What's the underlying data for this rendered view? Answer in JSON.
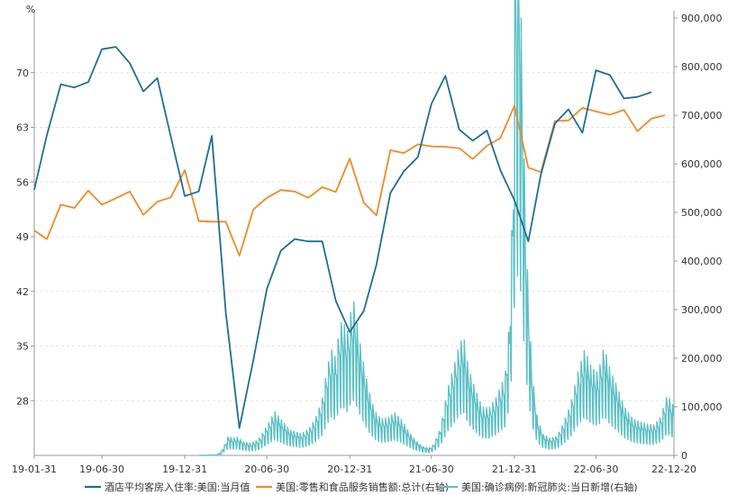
{
  "chart_data": {
    "type": "line",
    "ylabel_left": "%",
    "x_ticks": [
      "19-01-31",
      "19-06-30",
      "19-12-31",
      "20-06-30",
      "20-12-31",
      "21-06-30",
      "21-12-31",
      "22-06-30",
      "22-12-20"
    ],
    "x_range": [
      "2019-01-31",
      "2022-12-20"
    ],
    "y_left_ticks": [
      "28",
      "35",
      "42",
      "49",
      "56",
      "63",
      "70"
    ],
    "y_left_range": [
      21,
      77
    ],
    "y_right_ticks": [
      "0",
      "100,000",
      "200,000",
      "300,000",
      "400,000",
      "500,000",
      "600,000",
      "700,000",
      "800,000",
      "900,000"
    ],
    "y_right_range": [
      0,
      900000
    ],
    "grid": true,
    "legend_position": "bottom",
    "series": [
      {
        "name": "酒店平均客房入住率:美国:当月值",
        "axis": "left",
        "color": "#1f6e97",
        "x": [
          "2019-01-31",
          "2019-02-28",
          "2019-03-31",
          "2019-04-30",
          "2019-05-31",
          "2019-06-30",
          "2019-07-31",
          "2019-08-31",
          "2019-09-30",
          "2019-10-31",
          "2019-11-30",
          "2019-12-31",
          "2020-01-31",
          "2020-02-29",
          "2020-03-31",
          "2020-04-30",
          "2020-05-31",
          "2020-06-30",
          "2020-07-31",
          "2020-08-31",
          "2020-09-30",
          "2020-10-31",
          "2020-11-30",
          "2020-12-31",
          "2021-01-31",
          "2021-02-28",
          "2021-03-31",
          "2021-04-30",
          "2021-05-31",
          "2021-06-30",
          "2021-07-31",
          "2021-08-31",
          "2021-09-30",
          "2021-10-31",
          "2021-11-30",
          "2021-12-31",
          "2022-01-31",
          "2022-02-28",
          "2022-03-31",
          "2022-04-30",
          "2022-05-31",
          "2022-06-30",
          "2022-07-31",
          "2022-08-31",
          "2022-09-30",
          "2022-10-31"
        ],
        "values": [
          55.0,
          62.0,
          68.5,
          68.1,
          68.8,
          73.0,
          73.3,
          71.2,
          67.6,
          69.3,
          61.8,
          54.2,
          54.8,
          61.9,
          39.3,
          24.5,
          33.2,
          42.3,
          47.2,
          48.7,
          48.4,
          48.4,
          40.8,
          36.8,
          39.5,
          45.4,
          54.6,
          57.4,
          59.2,
          66.0,
          69.6,
          62.7,
          61.3,
          62.6,
          57.5,
          53.7,
          48.4,
          57.0,
          63.5,
          65.3,
          62.3,
          70.3,
          69.7,
          66.7,
          66.9,
          67.5
        ]
      },
      {
        "name": "美国:零售和食品服务销售额:总计(右轴)",
        "axis": "right",
        "color": "#f08a28",
        "x": [
          "2019-01-31",
          "2019-02-28",
          "2019-03-31",
          "2019-04-30",
          "2019-05-31",
          "2019-06-30",
          "2019-07-31",
          "2019-08-31",
          "2019-09-30",
          "2019-10-31",
          "2019-11-30",
          "2019-12-31",
          "2020-01-31",
          "2020-02-29",
          "2020-03-31",
          "2020-04-30",
          "2020-05-31",
          "2020-06-30",
          "2020-07-31",
          "2020-08-31",
          "2020-09-30",
          "2020-10-31",
          "2020-11-30",
          "2020-12-31",
          "2021-01-31",
          "2021-02-28",
          "2021-03-31",
          "2021-04-30",
          "2021-05-31",
          "2021-06-30",
          "2021-07-31",
          "2021-08-31",
          "2021-09-30",
          "2021-10-31",
          "2021-11-30",
          "2021-12-31",
          "2022-01-31",
          "2022-02-28",
          "2022-03-31",
          "2022-04-30",
          "2022-05-31",
          "2022-06-30",
          "2022-07-31",
          "2022-08-31",
          "2022-09-30",
          "2022-10-31",
          "2022-11-30"
        ],
        "values": [
          463000,
          445000,
          516000,
          509000,
          545000,
          516000,
          529000,
          543000,
          495000,
          522000,
          531000,
          587000,
          482000,
          481000,
          481000,
          411000,
          506000,
          530000,
          546000,
          543000,
          530000,
          552000,
          542000,
          611000,
          520000,
          494000,
          628000,
          622000,
          640000,
          636000,
          635000,
          632000,
          610000,
          637000,
          653000,
          719000,
          592000,
          583000,
          688000,
          689000,
          715000,
          708000,
          701000,
          711000,
          667000,
          693000,
          700000
        ]
      },
      {
        "name": "美国:确诊病例:新冠肺炎:当日新增(右轴)",
        "axis": "right",
        "color": "#5cc0c5",
        "points": [
          [
            "2020-02-01",
            0
          ],
          [
            "2020-03-10",
            1000
          ],
          [
            "2020-03-20",
            5000
          ],
          [
            "2020-03-31",
            22000
          ],
          [
            "2020-04-05",
            32000
          ],
          [
            "2020-04-15",
            28000
          ],
          [
            "2020-04-25",
            30000
          ],
          [
            "2020-05-10",
            22000
          ],
          [
            "2020-05-25",
            20000
          ],
          [
            "2020-06-10",
            25000
          ],
          [
            "2020-06-25",
            42000
          ],
          [
            "2020-07-10",
            62000
          ],
          [
            "2020-07-18",
            72000
          ],
          [
            "2020-07-25",
            65000
          ],
          [
            "2020-08-05",
            55000
          ],
          [
            "2020-08-20",
            42000
          ],
          [
            "2020-09-05",
            38000
          ],
          [
            "2020-09-15",
            36000
          ],
          [
            "2020-10-01",
            44000
          ],
          [
            "2020-10-15",
            60000
          ],
          [
            "2020-10-30",
            90000
          ],
          [
            "2020-11-10",
            140000
          ],
          [
            "2020-11-20",
            175000
          ],
          [
            "2020-11-30",
            160000
          ],
          [
            "2020-12-08",
            210000
          ],
          [
            "2020-12-15",
            225000
          ],
          [
            "2020-12-25",
            200000
          ],
          [
            "2021-01-03",
            240000
          ],
          [
            "2021-01-10",
            255000
          ],
          [
            "2021-01-18",
            205000
          ],
          [
            "2021-01-31",
            150000
          ],
          [
            "2021-02-10",
            110000
          ],
          [
            "2021-02-25",
            72000
          ],
          [
            "2021-03-10",
            60000
          ],
          [
            "2021-03-25",
            62000
          ],
          [
            "2021-04-10",
            70000
          ],
          [
            "2021-04-25",
            58000
          ],
          [
            "2021-05-10",
            40000
          ],
          [
            "2021-05-25",
            25000
          ],
          [
            "2021-06-10",
            15000
          ],
          [
            "2021-06-25",
            12000
          ],
          [
            "2021-07-05",
            18000
          ],
          [
            "2021-07-20",
            45000
          ],
          [
            "2021-08-05",
            110000
          ],
          [
            "2021-08-20",
            150000
          ],
          [
            "2021-09-01",
            185000
          ],
          [
            "2021-09-10",
            195000
          ],
          [
            "2021-09-20",
            145000
          ],
          [
            "2021-10-05",
            110000
          ],
          [
            "2021-10-20",
            80000
          ],
          [
            "2021-11-05",
            78000
          ],
          [
            "2021-11-20",
            95000
          ],
          [
            "2021-12-01",
            115000
          ],
          [
            "2021-12-10",
            130000
          ],
          [
            "2021-12-20",
            220000
          ],
          [
            "2021-12-28",
            460000
          ],
          [
            "2022-01-03",
            890000
          ],
          [
            "2022-01-07",
            820000
          ],
          [
            "2022-01-10",
            880000
          ],
          [
            "2022-01-15",
            720000
          ],
          [
            "2022-01-20",
            560000
          ],
          [
            "2022-01-25",
            380000
          ],
          [
            "2022-02-01",
            250000
          ],
          [
            "2022-02-08",
            140000
          ],
          [
            "2022-02-20",
            60000
          ],
          [
            "2022-03-05",
            35000
          ],
          [
            "2022-03-20",
            28000
          ],
          [
            "2022-04-05",
            32000
          ],
          [
            "2022-04-20",
            55000
          ],
          [
            "2022-05-05",
            85000
          ],
          [
            "2022-05-20",
            135000
          ],
          [
            "2022-06-05",
            175000
          ],
          [
            "2022-06-20",
            145000
          ],
          [
            "2022-07-05",
            135000
          ],
          [
            "2022-07-18",
            180000
          ],
          [
            "2022-08-01",
            140000
          ],
          [
            "2022-08-15",
            115000
          ],
          [
            "2022-09-01",
            80000
          ],
          [
            "2022-09-20",
            60000
          ],
          [
            "2022-10-05",
            55000
          ],
          [
            "2022-10-20",
            52000
          ],
          [
            "2022-11-05",
            50000
          ],
          [
            "2022-11-20",
            62000
          ],
          [
            "2022-12-05",
            100000
          ],
          [
            "2022-12-20",
            80000
          ]
        ]
      }
    ]
  }
}
